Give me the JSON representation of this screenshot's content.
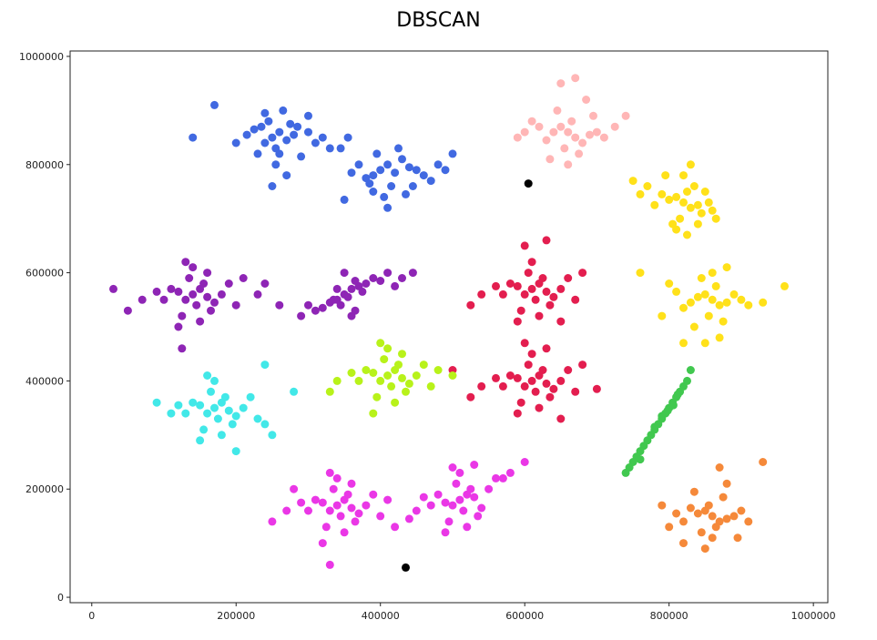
{
  "chart_data": {
    "type": "scatter",
    "title": "DBSCAN",
    "xlabel": "",
    "ylabel": "",
    "xlim": [
      -30000,
      1020000
    ],
    "ylim": [
      -10000,
      1010000
    ],
    "xticks": [
      0,
      200000,
      400000,
      600000,
      800000,
      1000000
    ],
    "yticks": [
      0,
      200000,
      400000,
      600000,
      800000,
      1000000
    ],
    "xtick_labels": [
      "0",
      "200000",
      "400000",
      "600000",
      "800000",
      "1000000"
    ],
    "ytick_labels": [
      "0",
      "200000",
      "400000",
      "600000",
      "800000",
      "1000000"
    ],
    "grid": false,
    "series": [
      {
        "color": "#4169e1",
        "x": [
          250000,
          260000,
          240000,
          235000,
          270000,
          280000,
          255000,
          245000,
          300000,
          310000,
          230000,
          215000,
          290000,
          265000,
          255000,
          275000,
          225000,
          320000,
          200000,
          330000,
          260000,
          285000,
          240000,
          355000,
          345000,
          300000,
          270000,
          140000,
          170000,
          250000
        ],
        "y": [
          850000,
          860000,
          840000,
          870000,
          845000,
          855000,
          830000,
          880000,
          860000,
          840000,
          820000,
          855000,
          815000,
          900000,
          800000,
          875000,
          865000,
          850000,
          840000,
          830000,
          820000,
          870000,
          895000,
          850000,
          830000,
          890000,
          780000,
          850000,
          910000,
          760000
        ]
      },
      {
        "color": "#4169e1",
        "x": [
          400000,
          410000,
          390000,
          420000,
          430000,
          380000,
          440000,
          415000,
          395000,
          450000,
          370000,
          460000,
          405000,
          425000,
          385000,
          480000,
          360000,
          435000,
          500000,
          350000,
          410000,
          445000,
          470000,
          490000,
          390000
        ],
        "y": [
          790000,
          800000,
          780000,
          785000,
          810000,
          775000,
          795000,
          760000,
          820000,
          790000,
          800000,
          780000,
          740000,
          830000,
          765000,
          800000,
          785000,
          745000,
          820000,
          735000,
          720000,
          760000,
          770000,
          790000,
          750000
        ]
      },
      {
        "color": "#ffb6b6",
        "x": [
          660000,
          670000,
          650000,
          680000,
          640000,
          690000,
          655000,
          665000,
          630000,
          700000,
          620000,
          675000,
          645000,
          710000,
          610000,
          685000,
          600000,
          725000,
          590000,
          660000,
          695000,
          635000,
          650000,
          670000,
          740000
        ],
        "y": [
          860000,
          850000,
          870000,
          840000,
          860000,
          855000,
          830000,
          880000,
          845000,
          860000,
          870000,
          820000,
          900000,
          850000,
          880000,
          920000,
          860000,
          870000,
          850000,
          800000,
          890000,
          810000,
          950000,
          960000,
          890000
        ]
      },
      {
        "color": "#ffe11a",
        "x": [
          820000,
          830000,
          810000,
          840000,
          800000,
          825000,
          845000,
          815000,
          790000,
          855000,
          835000,
          805000,
          860000,
          780000,
          820000,
          840000,
          770000,
          850000,
          810000,
          760000,
          830000,
          795000,
          865000,
          750000,
          825000
        ],
        "y": [
          730000,
          720000,
          740000,
          725000,
          735000,
          750000,
          710000,
          700000,
          745000,
          730000,
          760000,
          690000,
          715000,
          725000,
          780000,
          690000,
          760000,
          750000,
          680000,
          745000,
          800000,
          780000,
          700000,
          770000,
          670000
        ]
      },
      {
        "color": "#ffe11a",
        "x": [
          860000,
          850000,
          870000,
          840000,
          880000,
          855000,
          865000,
          830000,
          890000,
          845000,
          820000,
          875000,
          900000,
          810000,
          860000,
          835000,
          910000,
          800000,
          850000,
          880000,
          790000,
          930000,
          760000,
          960000,
          820000,
          870000
        ],
        "y": [
          550000,
          560000,
          540000,
          555000,
          545000,
          520000,
          575000,
          545000,
          560000,
          590000,
          535000,
          510000,
          550000,
          565000,
          600000,
          500000,
          540000,
          580000,
          470000,
          610000,
          520000,
          545000,
          600000,
          575000,
          470000,
          480000
        ]
      },
      {
        "color": "#41c84f",
        "x": [
          770000,
          775000,
          780000,
          785000,
          790000,
          795000,
          800000,
          805000,
          810000,
          815000,
          765000,
          760000,
          755000,
          750000,
          820000,
          745000,
          825000,
          790000,
          798000,
          806000,
          780000,
          740000,
          830000,
          760000,
          812000
        ],
        "y": [
          290000,
          300000,
          310000,
          320000,
          330000,
          340000,
          350000,
          360000,
          370000,
          380000,
          280000,
          270000,
          260000,
          250000,
          390000,
          240000,
          400000,
          335000,
          345000,
          355000,
          315000,
          230000,
          420000,
          255000,
          375000
        ]
      },
      {
        "color": "#f5893a",
        "x": [
          860000,
          850000,
          870000,
          840000,
          880000,
          855000,
          865000,
          830000,
          890000,
          845000,
          820000,
          875000,
          900000,
          810000,
          860000,
          835000,
          910000,
          800000,
          850000,
          880000,
          790000,
          930000,
          820000,
          870000,
          895000
        ],
        "y": [
          150000,
          160000,
          140000,
          155000,
          145000,
          170000,
          130000,
          165000,
          150000,
          120000,
          140000,
          185000,
          160000,
          155000,
          110000,
          195000,
          140000,
          130000,
          90000,
          210000,
          170000,
          250000,
          100000,
          240000,
          110000
        ]
      },
      {
        "color": "#e31e4f",
        "x": [
          610000,
          620000,
          600000,
          630000,
          590000,
          615000,
          625000,
          605000,
          640000,
          580000,
          635000,
          595000,
          650000,
          570000,
          610000,
          660000,
          560000,
          620000,
          600000,
          540000,
          670000,
          630000,
          590000,
          680000,
          525000,
          650000
        ],
        "y": [
          570000,
          580000,
          560000,
          565000,
          575000,
          550000,
          590000,
          600000,
          555000,
          580000,
          540000,
          530000,
          570000,
          560000,
          620000,
          590000,
          575000,
          520000,
          650000,
          560000,
          550000,
          660000,
          510000,
          600000,
          540000,
          510000
        ]
      },
      {
        "color": "#e31e4f",
        "x": [
          610000,
          620000,
          600000,
          630000,
          590000,
          615000,
          625000,
          605000,
          640000,
          580000,
          635000,
          595000,
          650000,
          570000,
          610000,
          660000,
          560000,
          620000,
          600000,
          540000,
          670000,
          630000,
          590000,
          680000,
          525000,
          650000,
          500000,
          700000
        ],
        "y": [
          400000,
          410000,
          390000,
          395000,
          405000,
          380000,
          420000,
          430000,
          385000,
          410000,
          370000,
          360000,
          400000,
          390000,
          450000,
          420000,
          405000,
          350000,
          470000,
          390000,
          380000,
          460000,
          340000,
          430000,
          370000,
          330000,
          420000,
          385000
        ]
      },
      {
        "color": "#8e25b5",
        "x": [
          140000,
          150000,
          130000,
          160000,
          120000,
          145000,
          155000,
          135000,
          170000,
          110000,
          165000,
          125000,
          180000,
          100000,
          140000,
          190000,
          90000,
          150000,
          130000,
          70000,
          200000,
          160000,
          120000,
          210000,
          50000,
          230000,
          240000,
          260000,
          30000,
          125000
        ],
        "y": [
          560000,
          570000,
          550000,
          555000,
          565000,
          540000,
          580000,
          590000,
          545000,
          570000,
          530000,
          520000,
          560000,
          550000,
          610000,
          580000,
          565000,
          510000,
          620000,
          550000,
          540000,
          600000,
          500000,
          590000,
          530000,
          560000,
          580000,
          540000,
          570000,
          460000
        ]
      },
      {
        "color": "#8e25b5",
        "x": [
          350000,
          360000,
          340000,
          370000,
          330000,
          355000,
          365000,
          345000,
          380000,
          320000,
          375000,
          335000,
          390000,
          310000,
          350000,
          400000,
          300000,
          360000,
          340000,
          410000,
          420000,
          290000,
          430000,
          445000,
          365000
        ],
        "y": [
          560000,
          570000,
          550000,
          575000,
          545000,
          555000,
          585000,
          540000,
          580000,
          535000,
          565000,
          550000,
          590000,
          530000,
          600000,
          585000,
          540000,
          520000,
          570000,
          600000,
          575000,
          520000,
          590000,
          600000,
          530000
        ]
      },
      {
        "color": "#42e8e8",
        "x": [
          170000,
          180000,
          160000,
          190000,
          150000,
          175000,
          185000,
          165000,
          200000,
          140000,
          195000,
          155000,
          210000,
          130000,
          170000,
          220000,
          120000,
          180000,
          160000,
          110000,
          230000,
          150000,
          240000,
          90000,
          250000,
          280000,
          200000,
          240000
        ],
        "y": [
          350000,
          360000,
          340000,
          345000,
          355000,
          330000,
          370000,
          380000,
          335000,
          360000,
          320000,
          310000,
          350000,
          340000,
          400000,
          370000,
          355000,
          300000,
          410000,
          340000,
          330000,
          290000,
          320000,
          360000,
          300000,
          380000,
          270000,
          430000
        ]
      },
      {
        "color": "#b8f21a",
        "x": [
          410000,
          420000,
          400000,
          430000,
          390000,
          415000,
          425000,
          405000,
          440000,
          380000,
          435000,
          395000,
          450000,
          370000,
          410000,
          460000,
          360000,
          420000,
          400000,
          340000,
          470000,
          430000,
          390000,
          480000,
          330000,
          500000
        ],
        "y": [
          410000,
          420000,
          400000,
          405000,
          415000,
          390000,
          430000,
          440000,
          395000,
          420000,
          380000,
          370000,
          410000,
          400000,
          460000,
          430000,
          415000,
          360000,
          470000,
          400000,
          390000,
          450000,
          340000,
          420000,
          380000,
          410000
        ]
      },
      {
        "color": "#ea37e6",
        "x": [
          340000,
          350000,
          330000,
          360000,
          320000,
          345000,
          355000,
          335000,
          370000,
          310000,
          365000,
          325000,
          380000,
          300000,
          340000,
          390000,
          290000,
          350000,
          330000,
          270000,
          400000,
          360000,
          320000,
          410000,
          250000,
          420000,
          280000,
          330000
        ],
        "y": [
          170000,
          180000,
          160000,
          165000,
          175000,
          150000,
          190000,
          200000,
          155000,
          180000,
          140000,
          130000,
          170000,
          160000,
          220000,
          190000,
          175000,
          120000,
          230000,
          160000,
          150000,
          210000,
          100000,
          180000,
          140000,
          130000,
          200000,
          60000
        ]
      },
      {
        "color": "#ea37e6",
        "x": [
          510000,
          520000,
          500000,
          530000,
          490000,
          515000,
          525000,
          505000,
          540000,
          480000,
          535000,
          495000,
          550000,
          470000,
          510000,
          560000,
          460000,
          520000,
          500000,
          450000,
          570000,
          530000,
          490000,
          580000,
          440000,
          600000
        ],
        "y": [
          180000,
          190000,
          170000,
          185000,
          175000,
          160000,
          200000,
          210000,
          165000,
          190000,
          150000,
          140000,
          200000,
          170000,
          230000,
          220000,
          185000,
          130000,
          240000,
          160000,
          220000,
          245000,
          120000,
          230000,
          145000,
          250000
        ]
      },
      {
        "color": "#000000",
        "x": [
          605000,
          435000
        ],
        "y": [
          765000,
          55000
        ]
      }
    ]
  }
}
